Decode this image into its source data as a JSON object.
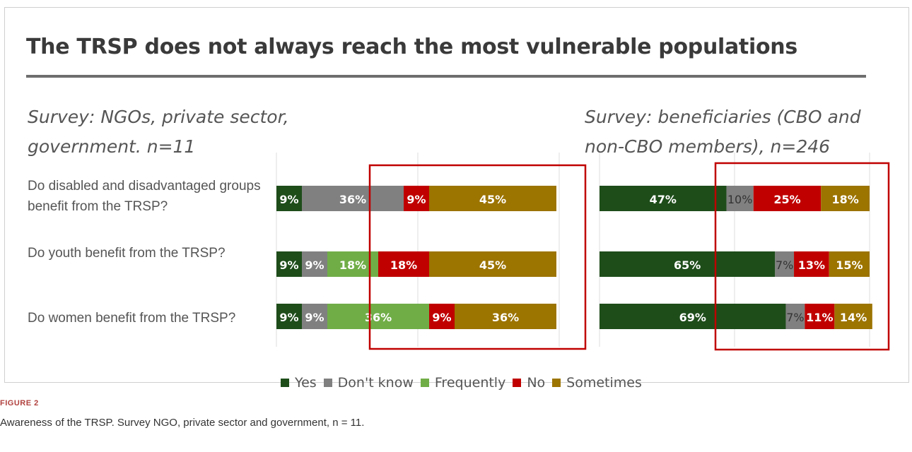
{
  "figure": {
    "label": "FIGURE 2",
    "caption": "Awareness of the TRSP. Survey NGO, private sector and government, n = 11."
  },
  "colors": {
    "Yes": "#1e4d1a",
    "Don't know": "#808080",
    "Frequently": "#70ad47",
    "No": "#c00000",
    "Sometimes": "#9c7400",
    "highlight_box": "#c00000",
    "label_dark": "#333333",
    "label_light": "#ffffff"
  },
  "chart_data": [
    {
      "type": "bar",
      "orientation": "horizontal",
      "stacked": true,
      "title": "The TRSP does not always reach the most vulnerable populations",
      "subtitle": "Survey: NGOs, private sector, government. n=11",
      "categories": [
        "Do disabled and disadvantaged groups benefit from the TRSP?",
        "Do youth benefit from the TRSP?",
        "Do women benefit from the TRSP?"
      ],
      "series": [
        {
          "name": "Yes",
          "values": [
            9,
            9,
            9
          ],
          "labels": [
            "9%",
            "9%",
            "9%"
          ]
        },
        {
          "name": "Don't know",
          "values": [
            36,
            9,
            9
          ],
          "labels": [
            "36%",
            "9%",
            "9%"
          ]
        },
        {
          "name": "Frequently",
          "values": [
            0,
            18,
            36
          ],
          "labels": [
            "",
            "18%",
            "36%"
          ]
        },
        {
          "name": "No",
          "values": [
            9,
            18,
            9
          ],
          "labels": [
            "9%",
            "18%",
            "9%"
          ]
        },
        {
          "name": "Sometimes",
          "values": [
            45,
            45,
            36
          ],
          "labels": [
            "45%",
            "45%",
            "36%"
          ]
        }
      ],
      "xlim": [
        0,
        100
      ],
      "grid": true,
      "legend": "bottom"
    },
    {
      "type": "bar",
      "orientation": "horizontal",
      "stacked": true,
      "subtitle": "Survey: beneficiaries (CBO and non-CBO members), n=246",
      "categories": [
        "Do disabled and disadvantaged groups benefit from the TRSP?",
        "Do youth benefit from the TRSP?",
        "Do women benefit from the TRSP?"
      ],
      "series": [
        {
          "name": "Yes",
          "values": [
            47,
            65,
            69
          ],
          "labels": [
            "47%",
            "65%",
            "69%"
          ]
        },
        {
          "name": "Don't know",
          "values": [
            10,
            7,
            7
          ],
          "labels": [
            "10%",
            "7%",
            "7%"
          ]
        },
        {
          "name": "No",
          "values": [
            25,
            13,
            11
          ],
          "labels": [
            "25%",
            "13%",
            "11%"
          ]
        },
        {
          "name": "Sometimes",
          "values": [
            18,
            15,
            14
          ],
          "labels": [
            "18%",
            "15%",
            "14%"
          ]
        }
      ],
      "xlim": [
        0,
        100
      ],
      "grid": true,
      "legend": "bottom"
    }
  ],
  "legend": [
    {
      "name": "Yes",
      "label": "Yes"
    },
    {
      "name": "Don't know",
      "label": "Don't know"
    },
    {
      "name": "Frequently",
      "label": "Frequently"
    },
    {
      "name": "No",
      "label": "No"
    },
    {
      "name": "Sometimes",
      "label": "Sometimes"
    }
  ]
}
